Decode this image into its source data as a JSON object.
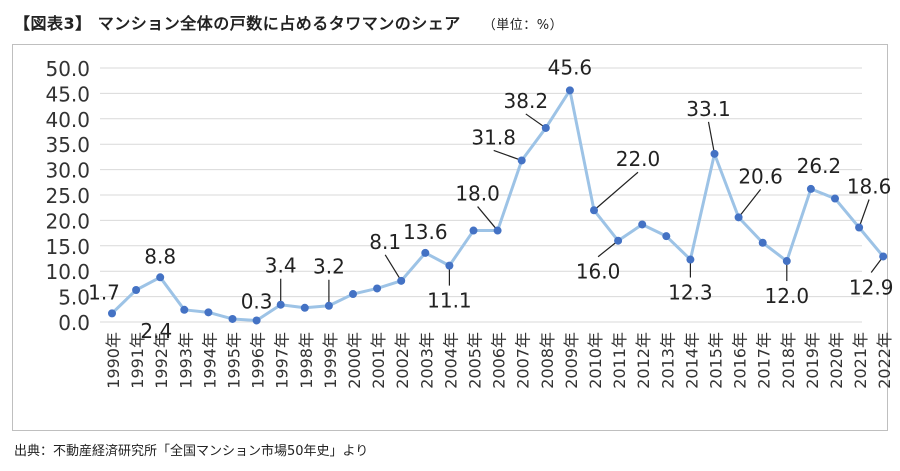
{
  "header": {
    "title": "【図表3】 マンション全体の戸数に占めるタワマンのシェア",
    "unit": "（単位：%）"
  },
  "footer": {
    "source": "出典：不動産経済研究所「全国マンション市場50年史」より"
  },
  "chart_data": {
    "type": "line",
    "title": "マンション全体の戸数に占めるタワマンのシェア",
    "xlabel": "",
    "ylabel": "",
    "ylim": [
      0,
      50
    ],
    "yticks": [
      "0.0",
      "5.0",
      "10.0",
      "15.0",
      "20.0",
      "25.0",
      "30.0",
      "35.0",
      "40.0",
      "45.0",
      "50.0"
    ],
    "grid": true,
    "legend": "none",
    "line_color": "#9dc3e6",
    "marker_color": "#4472c4",
    "categories": [
      "1990年",
      "1991年",
      "1992年",
      "1993年",
      "1994年",
      "1995年",
      "1996年",
      "1997年",
      "1998年",
      "1999年",
      "2000年",
      "2001年",
      "2002年",
      "2003年",
      "2004年",
      "2005年",
      "2006年",
      "2007年",
      "2008年",
      "2009年",
      "2010年",
      "2011年",
      "2012年",
      "2013年",
      "2014年",
      "2015年",
      "2016年",
      "2017年",
      "2018年",
      "2019年",
      "2020年",
      "2021年",
      "2022年"
    ],
    "values": [
      1.7,
      6.3,
      8.8,
      2.4,
      1.9,
      0.6,
      0.3,
      3.4,
      2.8,
      3.2,
      5.5,
      6.6,
      8.1,
      13.6,
      11.1,
      18.0,
      18.0,
      31.8,
      38.2,
      45.6,
      22.0,
      16.0,
      19.2,
      16.9,
      12.3,
      33.1,
      20.6,
      15.6,
      12.0,
      26.2,
      24.3,
      18.6,
      12.9
    ],
    "annotations": [
      {
        "index": 0,
        "text": "1.7"
      },
      {
        "index": 2,
        "text": "8.8"
      },
      {
        "index": 3,
        "text": "2.4"
      },
      {
        "index": 6,
        "text": "0.3"
      },
      {
        "index": 7,
        "text": "3.4"
      },
      {
        "index": 9,
        "text": "3.2"
      },
      {
        "index": 12,
        "text": "8.1"
      },
      {
        "index": 13,
        "text": "13.6"
      },
      {
        "index": 14,
        "text": "11.1"
      },
      {
        "index": 16,
        "text": "18.0"
      },
      {
        "index": 17,
        "text": "31.8"
      },
      {
        "index": 18,
        "text": "38.2"
      },
      {
        "index": 19,
        "text": "45.6"
      },
      {
        "index": 20,
        "text": "22.0"
      },
      {
        "index": 21,
        "text": "16.0"
      },
      {
        "index": 24,
        "text": "12.3"
      },
      {
        "index": 25,
        "text": "33.1"
      },
      {
        "index": 26,
        "text": "20.6"
      },
      {
        "index": 28,
        "text": "12.0"
      },
      {
        "index": 29,
        "text": "26.2"
      },
      {
        "index": 31,
        "text": "18.6"
      },
      {
        "index": 32,
        "text": "12.9"
      }
    ]
  }
}
